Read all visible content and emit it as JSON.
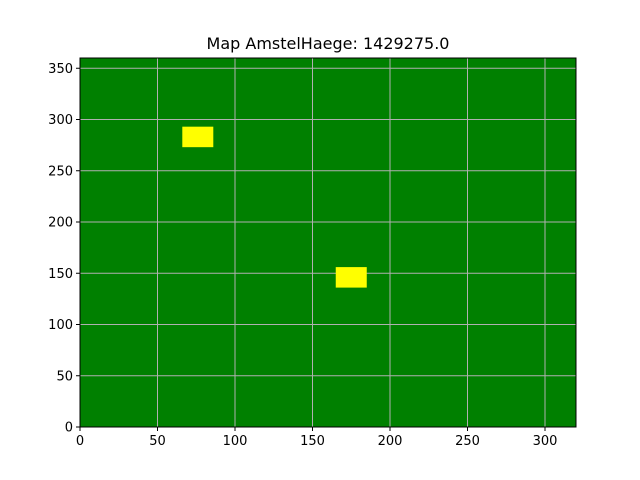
{
  "chart_data": {
    "type": "heatmap",
    "title": "Map AmstelHaege: 1429275.0",
    "xlabel": "",
    "ylabel": "",
    "xlim": [
      0,
      320
    ],
    "ylim": [
      0,
      360
    ],
    "xticks": [
      0,
      50,
      100,
      150,
      200,
      250,
      300
    ],
    "yticks": [
      0,
      50,
      100,
      150,
      200,
      250,
      300,
      350
    ],
    "grid": true,
    "background_color": "#008000",
    "grid_color": "#b0b0b0",
    "rect_color": "#ffff00",
    "rectangles": [
      {
        "x0": 66,
        "x1": 86,
        "y0": 273,
        "y1": 293
      },
      {
        "x0": 165,
        "x1": 185,
        "y0": 136,
        "y1": 156
      }
    ]
  }
}
